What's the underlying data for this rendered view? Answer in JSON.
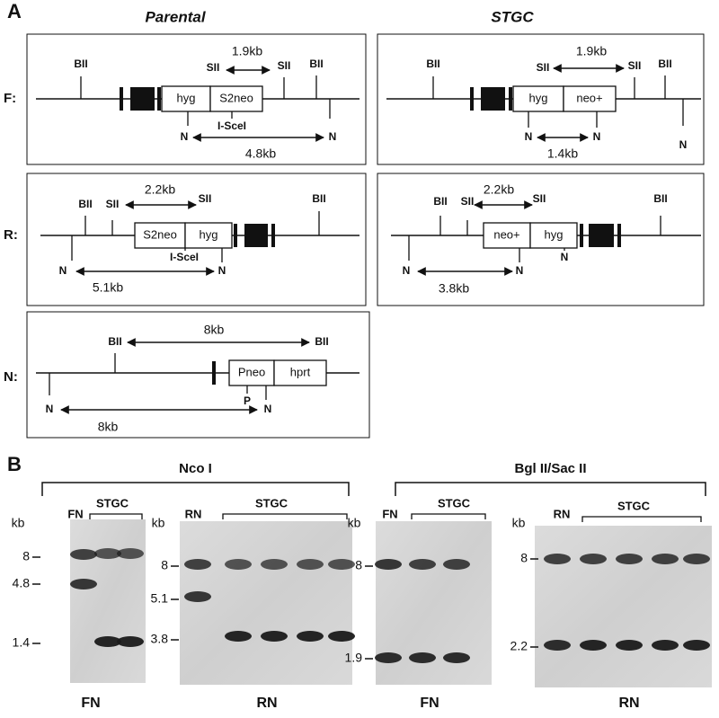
{
  "panel_a": {
    "label": "A",
    "headers": [
      "Parental",
      "STGC"
    ],
    "row_labels": [
      "F:",
      "R:",
      "N:"
    ],
    "maps": {
      "f_parental": {
        "top": [
          "BII",
          "SII",
          "SII",
          "BII"
        ],
        "boxes": [
          "hyg",
          "S2neo"
        ],
        "bottom": [
          "N",
          "I-SceI",
          "N"
        ],
        "distance_top": "1.9kb",
        "distance_bottom": "4.8kb"
      },
      "f_stgc": {
        "top": [
          "BII",
          "SII",
          "SII",
          "BII"
        ],
        "boxes": [
          "hyg",
          "neo+"
        ],
        "bottom": [
          "N",
          "N",
          "N"
        ],
        "distance_top": "1.9kb",
        "distance_bottom": "1.4kb"
      },
      "r_parental": {
        "top": [
          "BII",
          "SII",
          "SII",
          "BII"
        ],
        "boxes": [
          "S2neo",
          "hyg"
        ],
        "bottom": [
          "N",
          "I-SceI",
          "N"
        ],
        "distance_top": "2.2kb",
        "distance_bottom": "5.1kb"
      },
      "r_stgc": {
        "top": [
          "BII",
          "SII",
          "SII",
          "BII"
        ],
        "boxes": [
          "neo+",
          "hyg"
        ],
        "bottom": [
          "N",
          "N",
          "N"
        ],
        "distance_top": "2.2kb",
        "distance_bottom": "3.8kb"
      },
      "n": {
        "top": [
          "BII",
          "BII"
        ],
        "boxes": [
          "Pneo",
          "hprt"
        ],
        "bottom": [
          "N",
          "P",
          "N"
        ],
        "distance_top": "8kb",
        "distance_bottom": "8kb"
      }
    }
  },
  "panel_b": {
    "label": "B",
    "digests": [
      "Nco I",
      "Bgl II/Sac II"
    ],
    "blots": [
      {
        "unit": "kb",
        "control": "FN",
        "lanes_label": "STGC",
        "markers": [
          8,
          4.8,
          1.4
        ],
        "probe": "FN"
      },
      {
        "unit": "kb",
        "control": "RN",
        "lanes_label": "STGC",
        "markers": [
          8,
          5.1,
          3.8
        ],
        "probe": "RN"
      },
      {
        "unit": "kb",
        "control": "FN",
        "lanes_label": "STGC",
        "markers": [
          8,
          1.9
        ],
        "probe": "FN"
      },
      {
        "unit": "kb",
        "control": "RN",
        "lanes_label": "STGC",
        "markers": [
          8,
          2.2
        ],
        "probe": "RN"
      }
    ]
  }
}
